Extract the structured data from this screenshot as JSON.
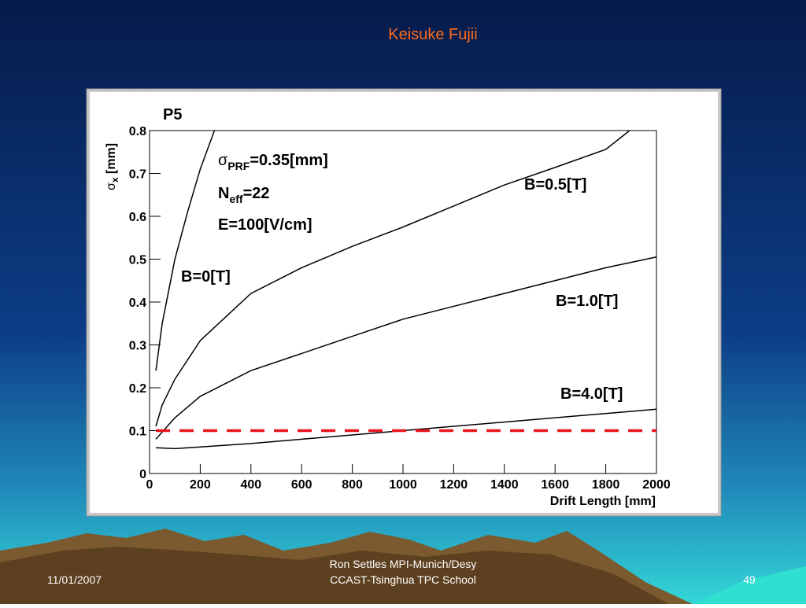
{
  "header": {
    "author": "Keisuke Fujii"
  },
  "footer": {
    "date": "11/01/2007",
    "line1": "Ron Settles  MPI-Munich/Desy",
    "line2": "CCAST-Tsinghua TPC School",
    "page": "49"
  },
  "chart_data": {
    "type": "line",
    "title": "P5",
    "x_label": "Drift Length [mm]",
    "y_label": {
      "symbol": "σ",
      "sub": "x",
      "text": " [mm]"
    },
    "annotations": [
      {
        "symbol": "σ",
        "sub": "PRF",
        "text": "=0.35[mm]"
      },
      {
        "symbol": "N",
        "sub": "eff",
        "text": "=22"
      },
      {
        "symbol": "",
        "sub": "",
        "text": "E=100[V/cm]"
      }
    ],
    "xlim": [
      0,
      2000
    ],
    "xticks": [
      0,
      200,
      400,
      600,
      800,
      1000,
      1200,
      1400,
      1600,
      1800,
      2000
    ],
    "ylim": [
      0,
      0.8
    ],
    "yticks": [
      0,
      0.1,
      0.2,
      0.3,
      0.4,
      0.5,
      0.6,
      0.7,
      0.8
    ],
    "series": [
      {
        "name": "B=0[T]",
        "color": "#000000",
        "x": [
          25,
          50,
          100,
          150,
          200,
          256
        ],
        "values": [
          0.24,
          0.35,
          0.5,
          0.61,
          0.71,
          0.8
        ]
      },
      {
        "name": "B=0.5[T]",
        "color": "#000000",
        "x": [
          25,
          50,
          100,
          200,
          400,
          600,
          800,
          1000,
          1200,
          1400,
          1600,
          1800,
          1894
        ],
        "values": [
          0.11,
          0.16,
          0.22,
          0.31,
          0.42,
          0.48,
          0.53,
          0.575,
          0.624,
          0.673,
          0.714,
          0.756,
          0.8
        ]
      },
      {
        "name": "B=1.0[T]",
        "color": "#000000",
        "x": [
          25,
          100,
          200,
          400,
          600,
          800,
          1000,
          1200,
          1400,
          1600,
          1800,
          2000
        ],
        "values": [
          0.08,
          0.13,
          0.18,
          0.24,
          0.28,
          0.32,
          0.36,
          0.39,
          0.42,
          0.45,
          0.48,
          0.505
        ]
      },
      {
        "name": "B=4.0[T]",
        "color": "#000000",
        "x": [
          25,
          100,
          200,
          400,
          600,
          800,
          1000,
          1200,
          1400,
          1600,
          1800,
          2000
        ],
        "values": [
          0.06,
          0.058,
          0.062,
          0.07,
          0.08,
          0.09,
          0.1,
          0.11,
          0.12,
          0.13,
          0.14,
          0.15
        ]
      },
      {
        "color": "#e8141c",
        "dashed": true,
        "x": [
          25,
          2000
        ],
        "values": [
          0.1,
          0.1
        ]
      }
    ]
  }
}
